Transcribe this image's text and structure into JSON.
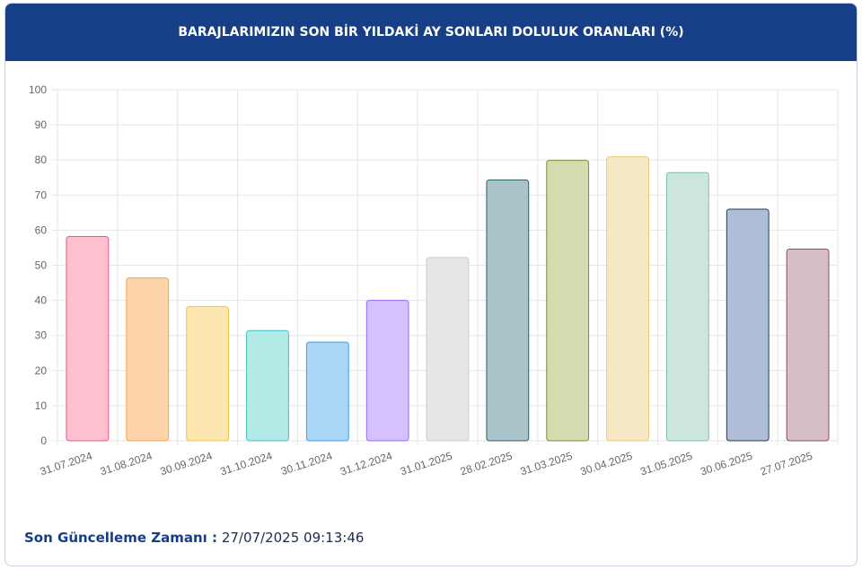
{
  "chart_data": {
    "type": "bar",
    "title": "BARAJLARIMIZIN SON BİR YILDAKİ AY SONLARI DOLULUK ORANLARI (%)",
    "categories": [
      "31.07.2024",
      "31.08.2024",
      "30.09.2024",
      "31.10.2024",
      "30.11.2024",
      "31.12.2024",
      "31.01.2025",
      "28.02.2025",
      "31.03.2025",
      "30.04.2025",
      "31.05.2025",
      "30.06.2025",
      "27.07.2025"
    ],
    "values": [
      58.2,
      46.4,
      38.2,
      31.4,
      28.1,
      40.0,
      52.2,
      74.3,
      79.9,
      80.9,
      76.4,
      66.0,
      54.6
    ],
    "colors": [
      "#ffc0cf",
      "#fed5a8",
      "#fde7b1",
      "#b2ebe6",
      "#a9d6f5",
      "#d4c1fd",
      "#e6e6e8",
      "#aac3c8",
      "#d7dbb0",
      "#f6e8c5",
      "#cde6dd",
      "#afbdd6",
      "#d7bfc8"
    ],
    "border_colors": [
      "#e05b7f",
      "#f0a050",
      "#f2c14e",
      "#4bc0c0",
      "#36a2eb",
      "#9966ff",
      "#c9cbcf",
      "#2e5f68",
      "#7e8a3a",
      "#e7c978",
      "#7fbfa4",
      "#1f3a6e",
      "#8b4a62"
    ],
    "ylim": [
      0,
      100
    ],
    "yticks": [
      0,
      10,
      20,
      30,
      40,
      50,
      60,
      70,
      80,
      90,
      100
    ],
    "grid": true
  },
  "footer": {
    "label": "Son Güncelleme Zamanı :",
    "value": "27/07/2025 09:13:46"
  }
}
